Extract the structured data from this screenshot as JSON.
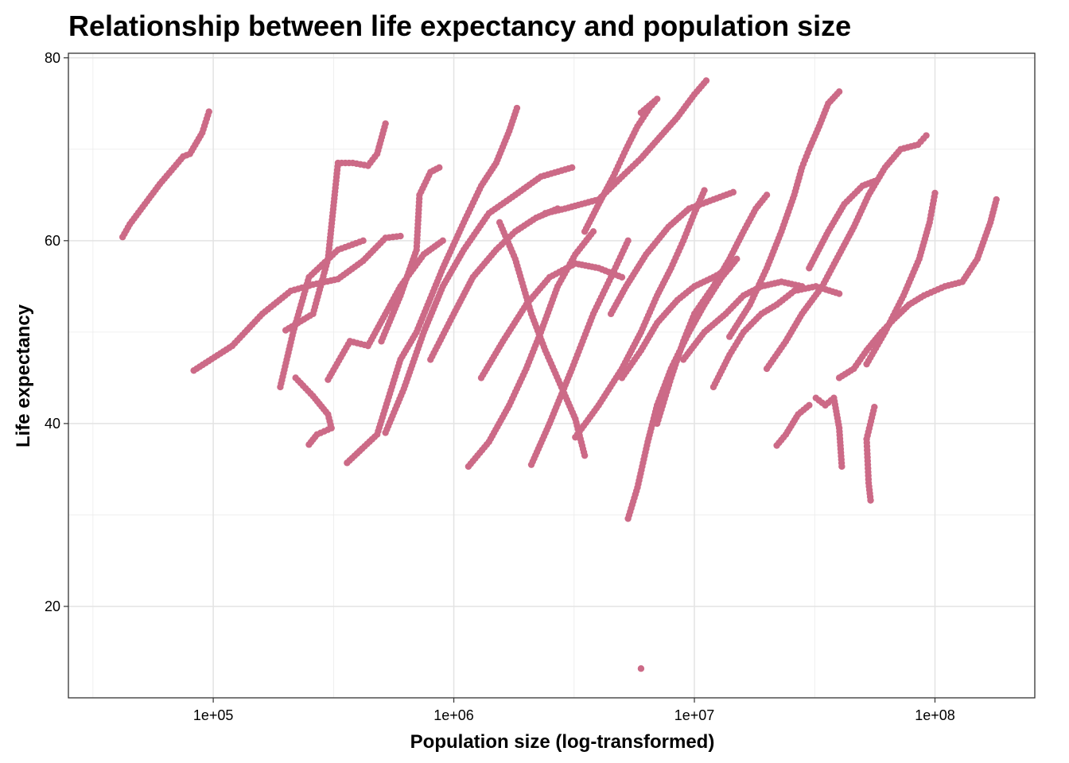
{
  "chart_data": {
    "type": "scatter",
    "title": "Relationship between life expectancy and population size",
    "xlabel": "Population size (log-transformed)",
    "ylabel": "Life expectancy",
    "x_scale": "log10",
    "xlim": [
      25000,
      260000000
    ],
    "ylim": [
      10,
      80.5
    ],
    "x_ticks": [
      {
        "value": 100000,
        "label": "1e+05"
      },
      {
        "value": 1000000,
        "label": "1e+06"
      },
      {
        "value": 10000000,
        "label": "1e+07"
      },
      {
        "value": 100000000,
        "label": "1e+08"
      }
    ],
    "y_ticks": [
      {
        "value": 20,
        "label": "20"
      },
      {
        "value": 40,
        "label": "40"
      },
      {
        "value": 60,
        "label": "60"
      },
      {
        "value": 80,
        "label": "80"
      }
    ],
    "grid": true,
    "point_color": "#CC6A87",
    "series": [
      {
        "values": [
          [
            42000,
            60.4
          ],
          [
            45000,
            61.8
          ],
          [
            60000,
            66.2
          ],
          [
            75000,
            69.2
          ],
          [
            80000,
            69.5
          ],
          [
            90000,
            71.8
          ],
          [
            96000,
            74.1
          ]
        ]
      },
      {
        "values": [
          [
            83000,
            45.8
          ],
          [
            120000,
            48.5
          ],
          [
            160000,
            52.0
          ],
          [
            210000,
            54.5
          ],
          [
            260000,
            55.2
          ],
          [
            330000,
            55.8
          ],
          [
            420000,
            57.8
          ],
          [
            520000,
            60.3
          ],
          [
            600000,
            60.5
          ]
        ]
      },
      {
        "values": [
          [
            200000,
            50.2
          ],
          [
            260000,
            52.0
          ],
          [
            300000,
            58.0
          ],
          [
            330000,
            68.5
          ],
          [
            380000,
            68.5
          ],
          [
            440000,
            68.2
          ],
          [
            480000,
            69.5
          ],
          [
            520000,
            72.8
          ]
        ]
      },
      {
        "values": [
          [
            190000,
            44.0
          ],
          [
            215000,
            50.0
          ],
          [
            250000,
            56.0
          ],
          [
            330000,
            59.0
          ],
          [
            420000,
            60.0
          ]
        ]
      },
      {
        "values": [
          [
            220000,
            45.0
          ],
          [
            260000,
            43.0
          ],
          [
            300000,
            41.0
          ],
          [
            310000,
            39.5
          ],
          [
            270000,
            38.8
          ],
          [
            250000,
            37.7
          ]
        ]
      },
      {
        "values": [
          [
            300000,
            44.8
          ],
          [
            370000,
            49.0
          ],
          [
            440000,
            48.5
          ],
          [
            600000,
            55.0
          ],
          [
            750000,
            58.5
          ],
          [
            900000,
            60.0
          ]
        ]
      },
      {
        "values": [
          [
            360000,
            35.7
          ],
          [
            480000,
            38.8
          ],
          [
            600000,
            47.0
          ],
          [
            700000,
            50.0
          ],
          [
            900000,
            57.0
          ],
          [
            1100000,
            62.0
          ],
          [
            1300000,
            66.0
          ],
          [
            1500000,
            68.5
          ],
          [
            1700000,
            72.0
          ],
          [
            1830000,
            74.5
          ]
        ]
      },
      {
        "values": [
          [
            520000,
            39.0
          ],
          [
            620000,
            43.8
          ],
          [
            750000,
            50.0
          ],
          [
            900000,
            55.0
          ],
          [
            1100000,
            59.0
          ],
          [
            1400000,
            63.0
          ],
          [
            1800000,
            65.0
          ],
          [
            2300000,
            67.0
          ],
          [
            3100000,
            68.0
          ]
        ]
      },
      {
        "values": [
          [
            500000,
            49.0
          ],
          [
            600000,
            54.0
          ],
          [
            700000,
            59.0
          ],
          [
            720000,
            65.0
          ],
          [
            800000,
            67.5
          ],
          [
            870000,
            68.0
          ]
        ]
      },
      {
        "values": [
          [
            800000,
            47.0
          ],
          [
            1000000,
            52.0
          ],
          [
            1200000,
            56.0
          ],
          [
            1500000,
            59.0
          ],
          [
            1800000,
            61.0
          ],
          [
            2200000,
            62.5
          ],
          [
            2700000,
            63.5
          ]
        ]
      },
      {
        "values": [
          [
            1150000,
            35.3
          ],
          [
            1400000,
            38.0
          ],
          [
            1700000,
            42.0
          ],
          [
            2000000,
            46.0
          ],
          [
            2300000,
            50.0
          ],
          [
            2700000,
            55.0
          ],
          [
            3200000,
            58.5
          ],
          [
            3800000,
            61.0
          ]
        ]
      },
      {
        "values": [
          [
            1550000,
            62.0
          ],
          [
            1800000,
            58.0
          ],
          [
            2100000,
            52.0
          ],
          [
            2400000,
            48.0
          ],
          [
            2800000,
            44.0
          ],
          [
            3200000,
            40.5
          ],
          [
            3500000,
            36.5
          ]
        ]
      },
      {
        "values": [
          [
            2100000,
            35.5
          ],
          [
            2500000,
            40.0
          ],
          [
            3100000,
            46.0
          ],
          [
            3800000,
            52.0
          ],
          [
            4500000,
            56.0
          ],
          [
            5300000,
            60.0
          ]
        ]
      },
      {
        "values": [
          [
            2400000,
            63.0
          ],
          [
            2900000,
            63.5
          ],
          [
            3400000,
            64.0
          ],
          [
            4000000,
            64.5
          ],
          [
            5000000,
            67.0
          ],
          [
            6000000,
            69.0
          ],
          [
            7000000,
            71.0
          ],
          [
            8500000,
            73.5
          ],
          [
            10000000,
            76.0
          ],
          [
            11200000,
            77.5
          ]
        ]
      },
      {
        "values": [
          [
            3500000,
            61.0
          ],
          [
            4000000,
            64.0
          ],
          [
            4600000,
            67.0
          ],
          [
            5200000,
            70.0
          ],
          [
            5800000,
            72.5
          ],
          [
            6500000,
            74.5
          ],
          [
            7000000,
            75.5
          ],
          [
            6000000,
            74.0
          ]
        ]
      },
      {
        "values": [
          [
            3200000,
            38.5
          ],
          [
            4000000,
            42.0
          ],
          [
            5000000,
            46.0
          ],
          [
            6000000,
            50.0
          ],
          [
            7000000,
            54.0
          ],
          [
            8000000,
            57.0
          ],
          [
            9000000,
            60.0
          ],
          [
            10000000,
            63.0
          ],
          [
            11000000,
            65.5
          ]
        ]
      },
      {
        "values": [
          [
            5300000,
            29.6
          ],
          [
            5800000,
            33.0
          ],
          [
            6400000,
            38.0
          ],
          [
            7000000,
            42.0
          ],
          [
            8000000,
            46.0
          ],
          [
            9500000,
            50.0
          ],
          [
            11000000,
            53.0
          ],
          [
            13000000,
            56.0
          ],
          [
            15000000,
            58.0
          ]
        ]
      },
      {
        "values": [
          [
            6000000,
            13.2
          ]
        ]
      },
      {
        "values": [
          [
            5000000,
            45.0
          ],
          [
            6000000,
            48.0
          ],
          [
            7000000,
            51.0
          ],
          [
            8500000,
            53.5
          ],
          [
            10000000,
            55.0
          ],
          [
            12000000,
            56.0
          ],
          [
            14000000,
            57.0
          ]
        ]
      },
      {
        "values": [
          [
            7000000,
            40.0
          ],
          [
            8000000,
            45.0
          ],
          [
            9000000,
            49.0
          ],
          [
            10000000,
            52.0
          ],
          [
            12000000,
            55.0
          ],
          [
            14000000,
            58.0
          ],
          [
            16000000,
            61.0
          ],
          [
            18000000,
            63.5
          ],
          [
            20000000,
            65.0
          ]
        ]
      },
      {
        "values": [
          [
            12000000,
            44.0
          ],
          [
            14000000,
            47.5
          ],
          [
            16000000,
            50.0
          ],
          [
            19000000,
            52.0
          ],
          [
            22000000,
            53.0
          ],
          [
            26000000,
            54.5
          ],
          [
            32000000,
            55.0
          ],
          [
            40000000,
            54.2
          ]
        ]
      },
      {
        "values": [
          [
            14000000,
            49.5
          ],
          [
            17000000,
            53.0
          ],
          [
            20000000,
            57.0
          ],
          [
            23000000,
            61.0
          ],
          [
            26000000,
            65.0
          ],
          [
            28000000,
            68.0
          ],
          [
            30000000,
            70.0
          ],
          [
            33000000,
            72.5
          ],
          [
            36000000,
            75.0
          ],
          [
            40000000,
            76.3
          ]
        ]
      },
      {
        "values": [
          [
            20000000,
            46.0
          ],
          [
            24000000,
            49.0
          ],
          [
            28000000,
            52.0
          ],
          [
            34000000,
            55.0
          ],
          [
            40000000,
            58.5
          ],
          [
            46000000,
            61.5
          ],
          [
            53000000,
            65.0
          ],
          [
            62000000,
            68.0
          ],
          [
            72000000,
            70.0
          ],
          [
            85000000,
            70.5
          ],
          [
            92000000,
            71.5
          ]
        ]
      },
      {
        "values": [
          [
            22000000,
            37.6
          ],
          [
            24000000,
            38.8
          ],
          [
            27000000,
            41.0
          ],
          [
            30000000,
            42.0
          ]
        ]
      },
      {
        "values": [
          [
            32000000,
            42.8
          ],
          [
            35000000,
            42.0
          ],
          [
            38000000,
            42.8
          ],
          [
            40000000,
            39.5
          ],
          [
            41000000,
            35.3
          ]
        ]
      },
      {
        "values": [
          [
            54000000,
            31.6
          ],
          [
            53000000,
            33.5
          ],
          [
            52000000,
            38.3
          ],
          [
            56000000,
            41.8
          ]
        ]
      },
      {
        "values": [
          [
            40000000,
            45.0
          ],
          [
            46000000,
            46.0
          ],
          [
            52000000,
            48.0
          ],
          [
            60000000,
            50.0
          ],
          [
            68000000,
            51.5
          ],
          [
            78000000,
            53.0
          ],
          [
            90000000,
            54.0
          ],
          [
            110000000,
            55.0
          ],
          [
            130000000,
            55.5
          ],
          [
            150000000,
            58.0
          ],
          [
            170000000,
            62.0
          ],
          [
            180000000,
            64.5
          ]
        ]
      },
      {
        "values": [
          [
            52000000,
            46.5
          ],
          [
            62000000,
            50.0
          ],
          [
            74000000,
            54.0
          ],
          [
            86000000,
            58.0
          ],
          [
            95000000,
            62.0
          ],
          [
            100000000,
            65.2
          ]
        ]
      },
      {
        "values": [
          [
            30000000,
            57.0
          ],
          [
            36000000,
            61.0
          ],
          [
            42000000,
            64.0
          ],
          [
            50000000,
            66.0
          ],
          [
            56000000,
            66.5
          ]
        ]
      },
      {
        "values": [
          [
            9000000,
            47.0
          ],
          [
            11000000,
            50.0
          ],
          [
            13500000,
            52.0
          ],
          [
            16000000,
            54.0
          ],
          [
            19000000,
            55.0
          ],
          [
            23000000,
            55.5
          ],
          [
            28000000,
            55.0
          ]
        ]
      },
      {
        "values": [
          [
            1300000,
            45.0
          ],
          [
            1600000,
            49.0
          ],
          [
            2000000,
            53.0
          ],
          [
            2500000,
            56.0
          ],
          [
            3200000,
            57.5
          ],
          [
            4000000,
            57.0
          ],
          [
            5000000,
            56.0
          ]
        ]
      },
      {
        "values": [
          [
            4500000,
            52.0
          ],
          [
            5200000,
            55.0
          ],
          [
            6300000,
            58.5
          ],
          [
            7800000,
            61.5
          ],
          [
            9500000,
            63.5
          ],
          [
            12000000,
            64.5
          ],
          [
            14500000,
            65.3
          ]
        ]
      }
    ]
  }
}
